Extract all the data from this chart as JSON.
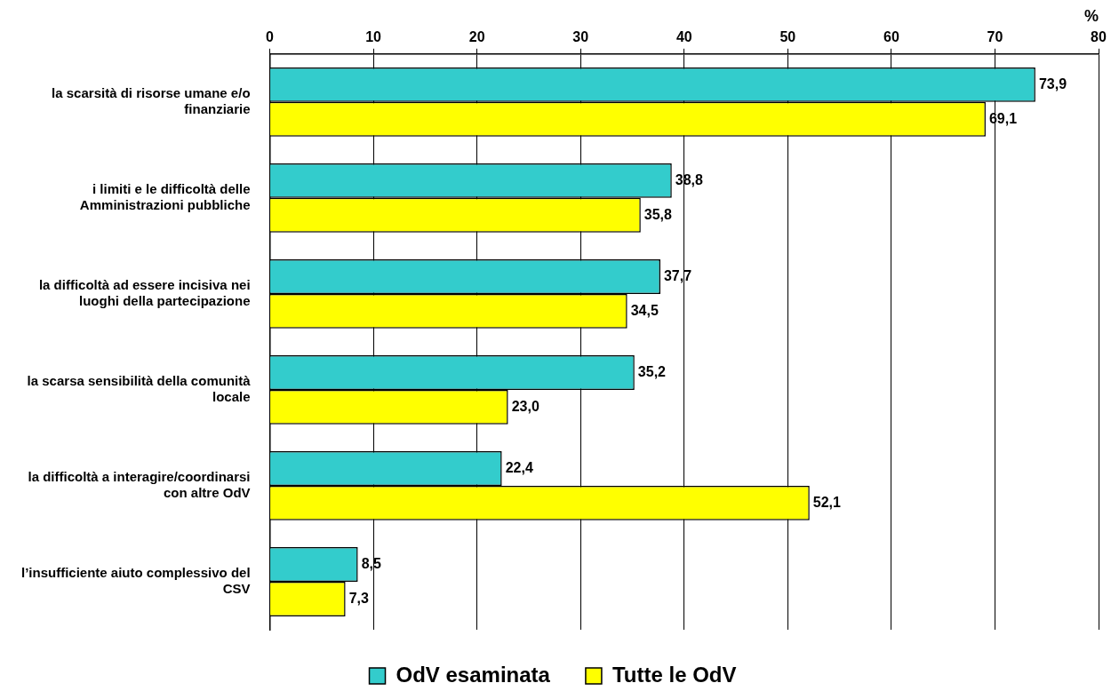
{
  "chart_data": {
    "type": "bar",
    "orientation": "horizontal",
    "xlabel": "%",
    "categories": [
      "la scarsità di risorse umane e/o finanziarie",
      "i limiti e le difficoltà delle Amministrazioni pubbliche",
      "la difficoltà ad essere incisiva nei luoghi della partecipazione",
      "la scarsa sensibilità della comunità locale",
      "la difficoltà a interagire/coordinarsi con altre OdV",
      "l’insufficiente aiuto complessivo del CSV"
    ],
    "series": [
      {
        "name": "OdV esaminata",
        "color": "#33cccc",
        "values": [
          73.9,
          38.8,
          37.7,
          35.2,
          22.4,
          8.5
        ],
        "value_labels": [
          "73,9",
          "38,8",
          "37,7",
          "35,2",
          "22,4",
          "8,5"
        ]
      },
      {
        "name": "Tutte le OdV",
        "color": "#ffff00",
        "values": [
          69.1,
          35.8,
          34.5,
          23.0,
          52.1,
          7.3
        ],
        "value_labels": [
          "69,1",
          "35,8",
          "34,5",
          "23,0",
          "52,1",
          "7,3"
        ]
      }
    ],
    "xlim": [
      0,
      80
    ],
    "xticks": [
      0,
      10,
      20,
      30,
      40,
      50,
      60,
      70,
      80
    ],
    "grid": "x",
    "legend": "bottom"
  }
}
